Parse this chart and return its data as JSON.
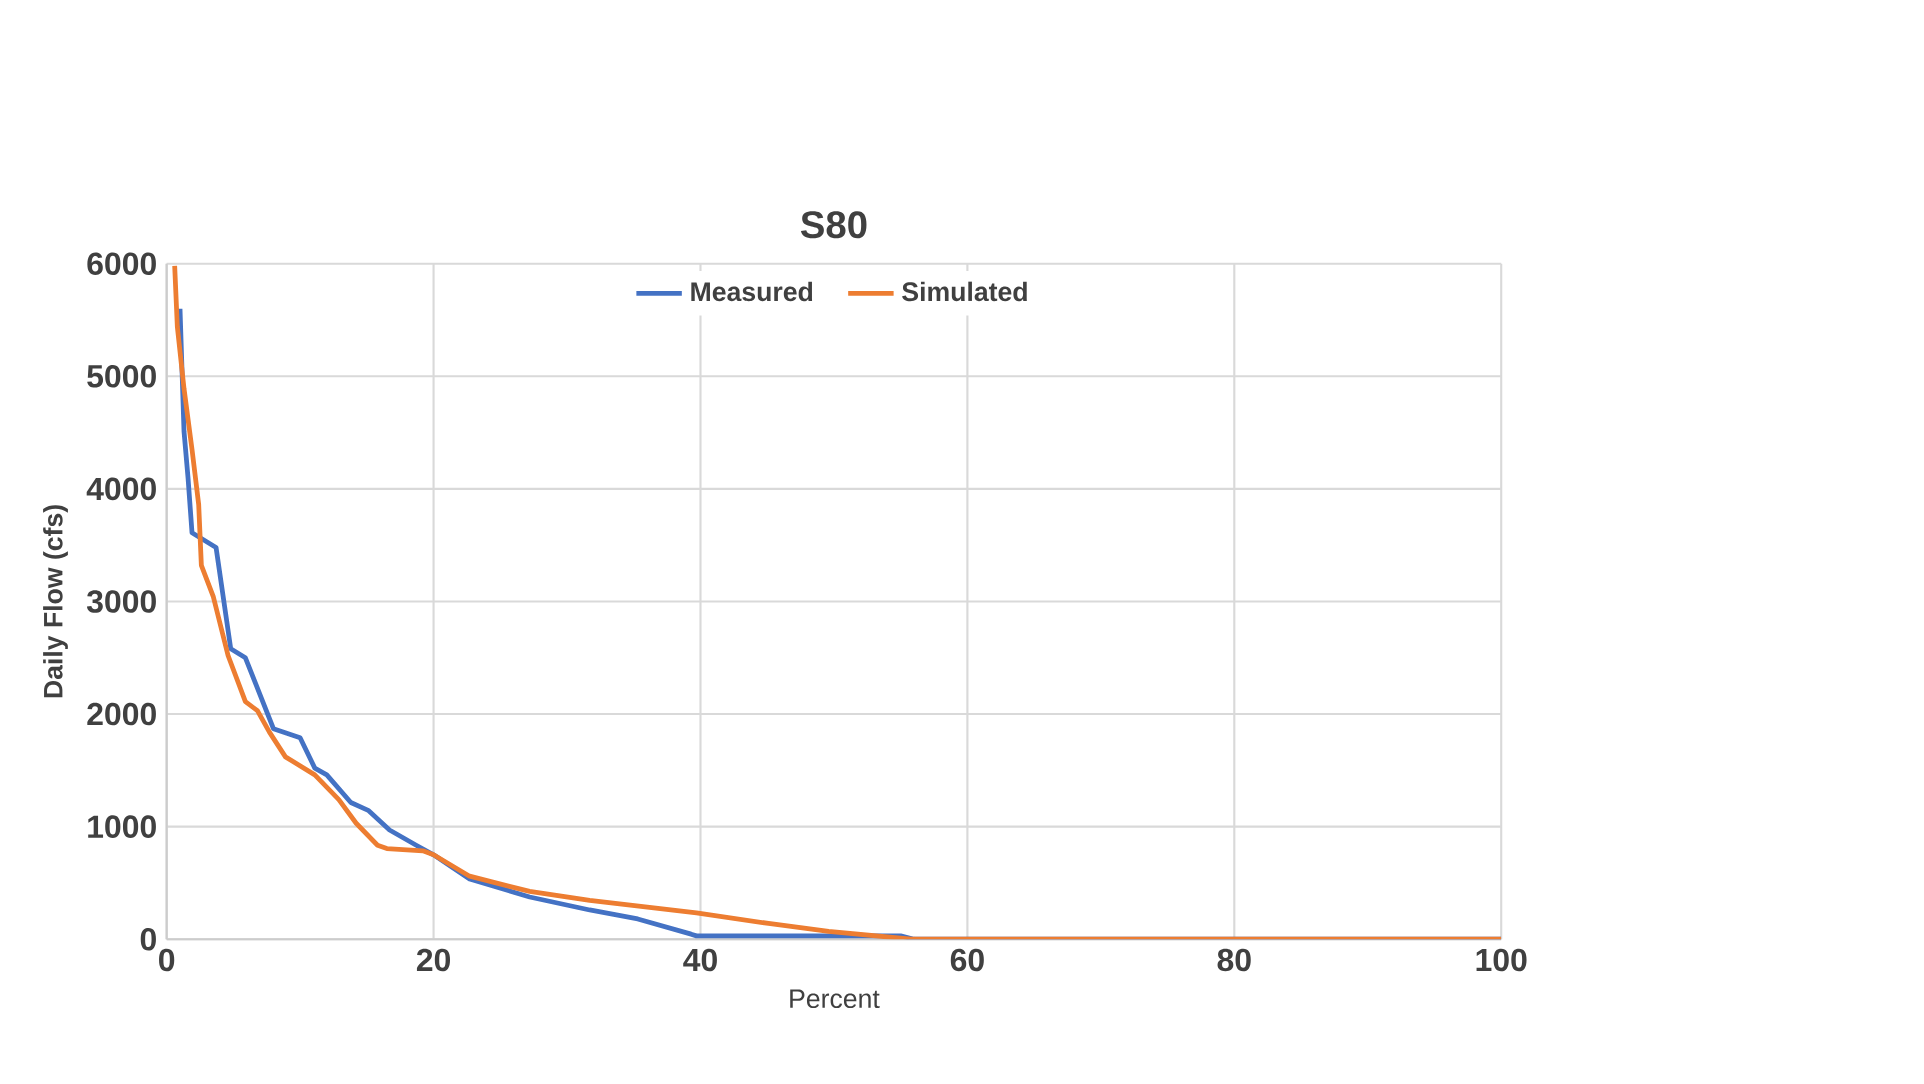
{
  "chart_data": {
    "type": "line",
    "title": "S80",
    "xlabel": "Percent",
    "ylabel": "Daily Flow (cfs)",
    "xlim": [
      0,
      100
    ],
    "xticks": [
      0,
      20,
      40,
      60,
      80,
      100
    ],
    "ylim": [
      0,
      6000
    ],
    "yticks": [
      0,
      1000,
      2000,
      3000,
      4000,
      5000,
      6000
    ],
    "grid": true,
    "legend": "top",
    "marker": "none",
    "line_style": "solid",
    "series": [
      {
        "name": "Measured",
        "color": "#4472c4",
        "x": [
          1.0,
          1.3,
          1.6,
          1.9,
          2.6,
          3.7,
          4.8,
          5.9,
          8.0,
          10.0,
          11.1,
          12.0,
          13.8,
          15.1,
          16.7,
          18.7,
          20.0,
          22.7,
          27.2,
          31.7,
          35.3,
          39.3,
          39.7,
          55.0,
          56.0,
          100
        ],
        "values": [
          5600,
          4510,
          4100,
          3610,
          3560,
          3480,
          2580,
          2500,
          1870,
          1790,
          1520,
          1460,
          1215,
          1145,
          970,
          835,
          750,
          535,
          375,
          260,
          180,
          45,
          30,
          30,
          0,
          0
        ]
      },
      {
        "name": "Simulated",
        "color": "#ed7d31",
        "x": [
          0.6,
          0.8,
          1.3,
          1.9,
          2.4,
          2.6,
          3.5,
          4.6,
          5.9,
          6.8,
          7.7,
          8.9,
          10.0,
          11.1,
          12.9,
          14.2,
          15.8,
          16.5,
          19.2,
          20.0,
          22.7,
          27.2,
          31.7,
          39.7,
          45.1,
          49.6,
          55.8,
          100
        ],
        "values": [
          5980,
          5440,
          4890,
          4350,
          3860,
          3320,
          3040,
          2520,
          2110,
          2030,
          1840,
          1620,
          1540,
          1460,
          1240,
          1030,
          835,
          805,
          785,
          750,
          560,
          425,
          345,
          235,
          140,
          70,
          0,
          0
        ]
      }
    ]
  }
}
